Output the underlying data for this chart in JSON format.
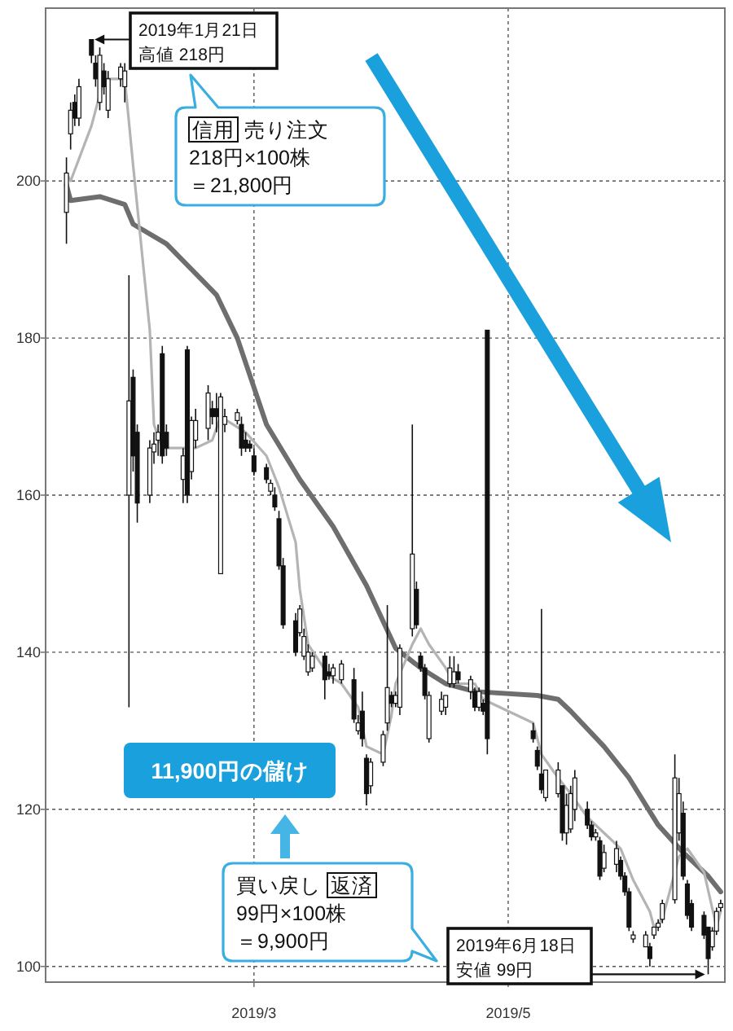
{
  "chart_data": {
    "type": "candlestick",
    "x": [
      "2019-01-15",
      "2019-01-16",
      "2019-01-17",
      "2019-01-18",
      "2019-01-21",
      "2019-01-22",
      "2019-01-23",
      "2019-01-24",
      "2019-01-25",
      "2019-01-28",
      "2019-01-29",
      "2019-01-30",
      "2019-01-31",
      "2019-02-01",
      "2019-02-04",
      "2019-02-05",
      "2019-02-06",
      "2019-02-07",
      "2019-02-08",
      "2019-02-12",
      "2019-02-13",
      "2019-02-14",
      "2019-02-15",
      "2019-02-18",
      "2019-02-19",
      "2019-02-20",
      "2019-02-21",
      "2019-02-22",
      "2019-02-25",
      "2019-02-26",
      "2019-02-27",
      "2019-02-28",
      "2019-03-01",
      "2019-03-04",
      "2019-03-05",
      "2019-03-06",
      "2019-03-07",
      "2019-03-08",
      "2019-03-11",
      "2019-03-12",
      "2019-03-13",
      "2019-03-14",
      "2019-03-15",
      "2019-03-18",
      "2019-03-19",
      "2019-03-20",
      "2019-03-22",
      "2019-03-25",
      "2019-03-26",
      "2019-03-27",
      "2019-03-28",
      "2019-03-29",
      "2019-04-01",
      "2019-04-02",
      "2019-04-03",
      "2019-04-04",
      "2019-04-05",
      "2019-04-08",
      "2019-04-09",
      "2019-04-10",
      "2019-04-11",
      "2019-04-12",
      "2019-04-15",
      "2019-04-16",
      "2019-04-17",
      "2019-04-18",
      "2019-04-19",
      "2019-04-22",
      "2019-04-23",
      "2019-04-24",
      "2019-04-25",
      "2019-04-26",
      "2019-05-07",
      "2019-05-08",
      "2019-05-09",
      "2019-05-10",
      "2019-05-13",
      "2019-05-14",
      "2019-05-15",
      "2019-05-16",
      "2019-05-17",
      "2019-05-20",
      "2019-05-21",
      "2019-05-22",
      "2019-05-23",
      "2019-05-24",
      "2019-05-27",
      "2019-05-28",
      "2019-05-29",
      "2019-05-30",
      "2019-05-31",
      "2019-06-03",
      "2019-06-04",
      "2019-06-05",
      "2019-06-06",
      "2019-06-07",
      "2019-06-10",
      "2019-06-11",
      "2019-06-12",
      "2019-06-13",
      "2019-06-14",
      "2019-06-17",
      "2019-06-18",
      "2019-06-19",
      "2019-06-20",
      "2019-06-21"
    ],
    "ohlc": [
      [
        196,
        203,
        192,
        201
      ],
      [
        206,
        210,
        204,
        209
      ],
      [
        210,
        211,
        207,
        208
      ],
      [
        208,
        213,
        207,
        212
      ],
      [
        218,
        218,
        215,
        216
      ],
      [
        215,
        216,
        212,
        213
      ],
      [
        210,
        217,
        209,
        216
      ],
      [
        214,
        215,
        211,
        212
      ],
      [
        209,
        214,
        208,
        213
      ],
      [
        213,
        215,
        212,
        214.5
      ],
      [
        212,
        215,
        210,
        214
      ],
      [
        160,
        188,
        133,
        172
      ],
      [
        175,
        176,
        163,
        165
      ],
      [
        168,
        169,
        156.5,
        159
      ],
      [
        160,
        167,
        159,
        166
      ],
      [
        165.5,
        168,
        164,
        166.5
      ],
      [
        167,
        169,
        165,
        168
      ],
      [
        178,
        179,
        164,
        165
      ],
      [
        168,
        169,
        165,
        166
      ],
      [
        162,
        166,
        159,
        165
      ],
      [
        178.5,
        179,
        159,
        160
      ],
      [
        163,
        170,
        162,
        169.5
      ],
      [
        167,
        171,
        166,
        169.5
      ],
      [
        168.5,
        174,
        167,
        173
      ],
      [
        171,
        172,
        169,
        170
      ],
      [
        171,
        173,
        168,
        170
      ],
      [
        150,
        173,
        150,
        172.5
      ],
      [
        169,
        171,
        168,
        170
      ],
      [
        169.5,
        171,
        169,
        170.5
      ],
      [
        169,
        170,
        165,
        166
      ],
      [
        167,
        168,
        165.5,
        166
      ],
      [
        166.5,
        167,
        165.5,
        166
      ],
      [
        165,
        166,
        162.5,
        163
      ],
      [
        163.5,
        164,
        161.5,
        162
      ],
      [
        160.5,
        162,
        160,
        161.5
      ],
      [
        160,
        161,
        158,
        158.5
      ],
      [
        157,
        158,
        150.5,
        151
      ],
      [
        151,
        152,
        143,
        143.5
      ],
      [
        144,
        145,
        139.5,
        140
      ],
      [
        142.5,
        146,
        142,
        145.5
      ],
      [
        139.5,
        143,
        139,
        142
      ],
      [
        137.5,
        141,
        137,
        140
      ],
      [
        138,
        140,
        137.5,
        139.5
      ],
      [
        139.5,
        140,
        134,
        136.5
      ],
      [
        137.5,
        138.5,
        136.5,
        137
      ],
      [
        137,
        138.5,
        136,
        138
      ],
      [
        136.5,
        139,
        136,
        138.5
      ],
      [
        136.5,
        138,
        131,
        131.5
      ],
      [
        130,
        132,
        129.5,
        131
      ],
      [
        132.5,
        135,
        128,
        129
      ],
      [
        126.5,
        127,
        120.5,
        122
      ],
      [
        123,
        126.5,
        122,
        126
      ],
      [
        126,
        130,
        125.5,
        129.5
      ],
      [
        131,
        146,
        130,
        135.5
      ],
      [
        134.5,
        135,
        133,
        133.5
      ],
      [
        133.5,
        135,
        133,
        134.5
      ],
      [
        133,
        141,
        132,
        140.5
      ],
      [
        143,
        169,
        142,
        152.5
      ],
      [
        148,
        149,
        143,
        143.5
      ],
      [
        139.5,
        140,
        137.5,
        138
      ],
      [
        138,
        138.5,
        134,
        134.5
      ],
      [
        129,
        135,
        128.5,
        134.5
      ],
      [
        132.5,
        135,
        132,
        134
      ],
      [
        133,
        134.5,
        132,
        134.5
      ],
      [
        136,
        139.5,
        135.5,
        138
      ],
      [
        136,
        139.5,
        135.5,
        137.5
      ],
      [
        137.5,
        138.5,
        136,
        136.5
      ],
      [
        135,
        137,
        134,
        136.5
      ],
      [
        135,
        135.5,
        132.5,
        133
      ],
      [
        133,
        135.5,
        132.5,
        135
      ],
      [
        133.5,
        134,
        132,
        132.5
      ],
      [
        181,
        181,
        127,
        129
      ],
      [
        130,
        131,
        128.5,
        129
      ],
      [
        127.5,
        128,
        125,
        125.5
      ],
      [
        124.5,
        145.5,
        122,
        122.5
      ],
      [
        121.5,
        125,
        121,
        125
      ],
      [
        122,
        126,
        121.5,
        125
      ],
      [
        123,
        123,
        116,
        117
      ],
      [
        117,
        122,
        115.5,
        120.5
      ],
      [
        117.5,
        123,
        117,
        122
      ],
      [
        120,
        125,
        118.5,
        124
      ],
      [
        120,
        121,
        117.5,
        118
      ],
      [
        118,
        118.5,
        116,
        116.5
      ],
      [
        116.5,
        117.5,
        116,
        117
      ],
      [
        116,
        116.5,
        111,
        111.5
      ],
      [
        112.5,
        115.5,
        112,
        114.5
      ],
      [
        113,
        116,
        112,
        115
      ],
      [
        113.5,
        114,
        111,
        111.5
      ],
      [
        111.5,
        112,
        109,
        109.5
      ],
      [
        109.5,
        110,
        104.5,
        105
      ],
      [
        103.5,
        104.5,
        103,
        104
      ],
      [
        102.5,
        104.5,
        102.5,
        104
      ],
      [
        102.5,
        103,
        100,
        101
      ],
      [
        104,
        105,
        103.5,
        105
      ],
      [
        105,
        106,
        104.5,
        105.5
      ],
      [
        106,
        108.5,
        105.5,
        108
      ],
      [
        108.5,
        127,
        108,
        124
      ],
      [
        117,
        124,
        116,
        122
      ],
      [
        119.5,
        121,
        111,
        111.5
      ],
      [
        110.5,
        111,
        106,
        106.5
      ],
      [
        108,
        108.5,
        104.5,
        105
      ],
      [
        106.5,
        107,
        103.5,
        104
      ],
      [
        105,
        105,
        99,
        101
      ],
      [
        102.5,
        105,
        102,
        104.5
      ],
      [
        104.5,
        107.5,
        104,
        107
      ],
      [
        107.5,
        108.5,
        107,
        108
      ]
    ],
    "series": [
      {
        "type": "line",
        "color": "#6e6e6e",
        "x": [
          "2019-01-15",
          "2019-01-16",
          "2019-01-23",
          "2019-01-29",
          "2019-01-31",
          "2019-02-08",
          "2019-02-20",
          "2019-02-25",
          "2019-03-04",
          "2019-03-12",
          "2019-03-20",
          "2019-03-28",
          "2019-04-04",
          "2019-04-10",
          "2019-04-16",
          "2019-04-23",
          "2019-05-08",
          "2019-05-13",
          "2019-05-16",
          "2019-05-24",
          "2019-05-30",
          "2019-06-06",
          "2019-06-12",
          "2019-06-18",
          "2019-06-21"
        ],
        "values": [
          199.5,
          197.5,
          198,
          197,
          194.5,
          192,
          185.5,
          180,
          169,
          162,
          156,
          148.5,
          140.5,
          138,
          136,
          135,
          134.5,
          134,
          132.5,
          128,
          124,
          118,
          114.5,
          111.5,
          109.5
        ]
      },
      {
        "type": "line",
        "color": "#b4b4b4",
        "x": [
          "2019-01-15",
          "2019-01-16",
          "2019-01-21",
          "2019-01-24",
          "2019-01-29",
          "2019-01-31",
          "2019-02-04",
          "2019-02-05",
          "2019-02-07",
          "2019-02-12",
          "2019-02-15",
          "2019-02-19",
          "2019-02-21",
          "2019-02-27",
          "2019-03-04",
          "2019-03-07",
          "2019-03-11",
          "2019-03-12",
          "2019-03-14",
          "2019-03-19",
          "2019-03-22",
          "2019-03-26",
          "2019-03-28",
          "2019-04-01",
          "2019-04-03",
          "2019-04-04",
          "2019-04-08",
          "2019-04-10",
          "2019-04-12",
          "2019-04-16",
          "2019-04-18",
          "2019-04-23",
          "2019-04-25",
          "2019-05-07",
          "2019-05-09",
          "2019-05-13",
          "2019-05-16",
          "2019-05-20",
          "2019-05-24",
          "2019-05-28",
          "2019-05-31",
          "2019-06-04",
          "2019-06-05",
          "2019-06-07",
          "2019-06-11",
          "2019-06-13",
          "2019-06-17",
          "2019-06-20",
          "2019-06-21"
        ],
        "values": [
          201,
          200,
          207,
          213,
          213,
          202,
          181,
          169,
          166,
          166,
          166,
          167,
          170,
          168,
          165,
          161,
          154,
          148,
          141,
          137,
          136,
          133,
          128,
          127,
          132,
          136,
          141,
          143,
          141,
          138,
          136,
          136,
          134,
          131,
          127,
          124,
          122,
          119,
          117,
          115,
          111,
          107,
          105,
          106,
          114,
          115,
          112,
          105,
          107
        ]
      }
    ],
    "xlim": [
      "2019-01-10",
      "2019-06-22"
    ],
    "xticks": [
      {
        "value": "2019-03-01",
        "label": "2019/3"
      },
      {
        "value": "2019-05-01",
        "label": "2019/5"
      }
    ],
    "ylim": [
      98,
      222
    ],
    "yticks": [
      100,
      120,
      140,
      160,
      180,
      200
    ],
    "grid": true,
    "annotations": [
      {
        "text": "2019年1月21日",
        "x": "2019-01-21",
        "y": 218
      },
      "高値 218円",
      "信用 売り注文",
      "218円×100株",
      "＝21,800円",
      "11,900円の儲け",
      "買い戻し 返済",
      "99円×100株",
      "＝9,900円",
      "2019年6月18日",
      "安値 99円"
    ]
  }
}
